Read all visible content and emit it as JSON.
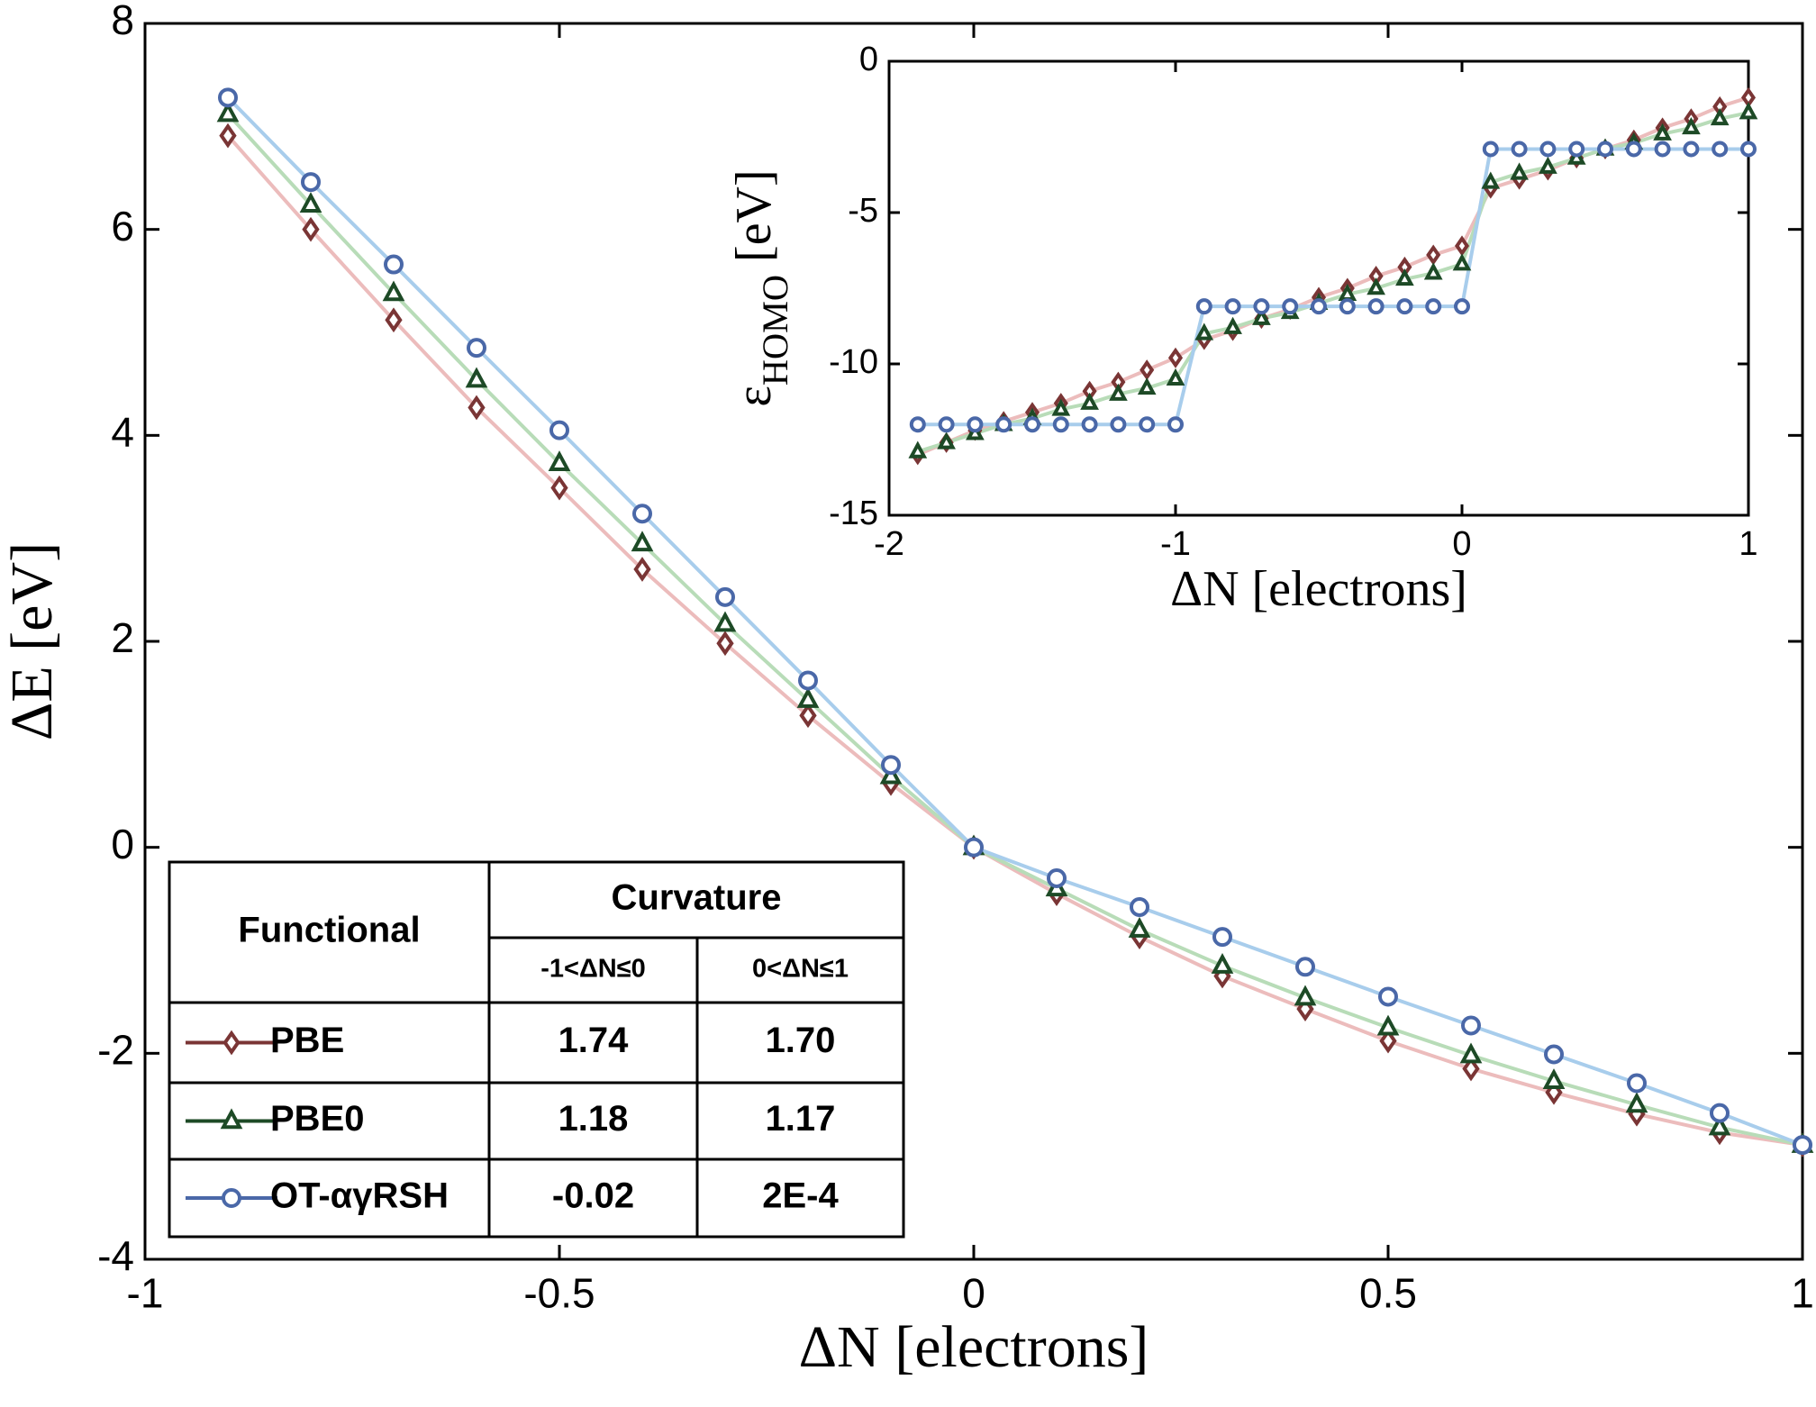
{
  "chart_data": [
    {
      "type": "line",
      "xlabel": "ΔN [electrons]",
      "ylabel": "ΔE [eV]",
      "x": [
        -0.9,
        -0.8,
        -0.7,
        -0.6,
        -0.5,
        -0.4,
        -0.3,
        -0.2,
        -0.1,
        0,
        0.1,
        0.2,
        0.3,
        0.4,
        0.5,
        0.6,
        0.7,
        0.8,
        0.9,
        1.0
      ],
      "xlim": [
        -1,
        1
      ],
      "xticks": [
        -1,
        -0.5,
        0,
        0.5,
        1
      ],
      "ylim": [
        -4,
        8
      ],
      "yticks": [
        -4,
        -2,
        0,
        2,
        4,
        6,
        8
      ],
      "series": [
        {
          "name": "PBE",
          "marker": "diamond",
          "color": "#7a3535",
          "line_color": "#ecbcbc",
          "values": [
            6.91,
            6.0,
            5.12,
            4.27,
            3.49,
            2.7,
            1.98,
            1.28,
            0.62,
            0,
            -0.45,
            -0.87,
            -1.25,
            -1.57,
            -1.88,
            -2.15,
            -2.38,
            -2.59,
            -2.77,
            -2.89
          ]
        },
        {
          "name": "PBE0",
          "marker": "triangle",
          "color": "#1d4a26",
          "line_color": "#b8dcb8",
          "values": [
            7.12,
            6.24,
            5.38,
            4.54,
            3.73,
            2.95,
            2.17,
            1.43,
            0.69,
            0,
            -0.4,
            -0.8,
            -1.15,
            -1.46,
            -1.75,
            -2.02,
            -2.27,
            -2.5,
            -2.72,
            -2.89
          ]
        },
        {
          "name": "OT-αγRSH",
          "marker": "circle",
          "color": "#4a68a8",
          "line_color": "#a8cdec",
          "values": [
            7.28,
            6.46,
            5.66,
            4.85,
            4.05,
            3.24,
            2.43,
            1.62,
            0.8,
            0,
            -0.3,
            -0.58,
            -0.87,
            -1.16,
            -1.45,
            -1.73,
            -2.01,
            -2.29,
            -2.58,
            -2.89
          ]
        }
      ]
    },
    {
      "type": "line",
      "xlabel": "ΔN [electrons]",
      "ylabel": "ε",
      "ylabel_sub": "HOMO",
      "ylabel_unit": "[eV]",
      "x": [
        -1.9,
        -1.8,
        -1.7,
        -1.6,
        -1.5,
        -1.4,
        -1.3,
        -1.2,
        -1.1,
        -1.0,
        -0.9,
        -0.8,
        -0.7,
        -0.6,
        -0.5,
        -0.4,
        -0.3,
        -0.2,
        -0.1,
        0,
        0.1,
        0.2,
        0.3,
        0.4,
        0.5,
        0.6,
        0.7,
        0.8,
        0.9,
        1.0
      ],
      "xlim": [
        -2,
        1
      ],
      "xticks": [
        -2,
        -1,
        0,
        1
      ],
      "ylim": [
        -15,
        0
      ],
      "yticks": [
        -15,
        -10,
        -5,
        0
      ],
      "series": [
        {
          "name": "PBE",
          "marker": "diamond",
          "color": "#7a3535",
          "line_color": "#ecbcbc",
          "values": [
            -13.0,
            -12.6,
            -12.2,
            -11.9,
            -11.6,
            -11.3,
            -10.9,
            -10.6,
            -10.2,
            -9.8,
            -9.2,
            -8.9,
            -8.5,
            -8.2,
            -7.8,
            -7.5,
            -7.1,
            -6.8,
            -6.4,
            -6.1,
            -4.2,
            -3.9,
            -3.6,
            -3.2,
            -2.9,
            -2.6,
            -2.2,
            -1.9,
            -1.5,
            -1.2
          ]
        },
        {
          "name": "PBE0",
          "marker": "triangle",
          "color": "#1d4a26",
          "line_color": "#b8dcb8",
          "values": [
            -12.9,
            -12.6,
            -12.3,
            -12.0,
            -11.8,
            -11.5,
            -11.3,
            -11.0,
            -10.8,
            -10.5,
            -9.0,
            -8.8,
            -8.5,
            -8.3,
            -8.0,
            -7.7,
            -7.5,
            -7.2,
            -7.0,
            -6.7,
            -4.0,
            -3.7,
            -3.5,
            -3.2,
            -2.9,
            -2.7,
            -2.4,
            -2.2,
            -1.9,
            -1.7
          ]
        },
        {
          "name": "OT-αγRSH",
          "marker": "circle",
          "color": "#4a68a8",
          "line_color": "#a8cdec",
          "values": [
            -12.0,
            -12.0,
            -12.0,
            -12.0,
            -12.0,
            -12.0,
            -12.0,
            -12.0,
            -12.0,
            -12.0,
            -8.1,
            -8.1,
            -8.1,
            -8.1,
            -8.1,
            -8.1,
            -8.1,
            -8.1,
            -8.1,
            -8.1,
            -2.9,
            -2.9,
            -2.9,
            -2.9,
            -2.9,
            -2.9,
            -2.9,
            -2.9,
            -2.9,
            -2.9
          ]
        }
      ]
    }
  ],
  "table": {
    "header": "Functional",
    "group": "Curvature",
    "subheaders": [
      "-1<ΔN≤0",
      "0<ΔN≤1"
    ],
    "rows": [
      [
        "1.74",
        "1.70"
      ],
      [
        "1.18",
        "1.17"
      ],
      [
        "-0.02",
        "2E-4"
      ]
    ]
  }
}
